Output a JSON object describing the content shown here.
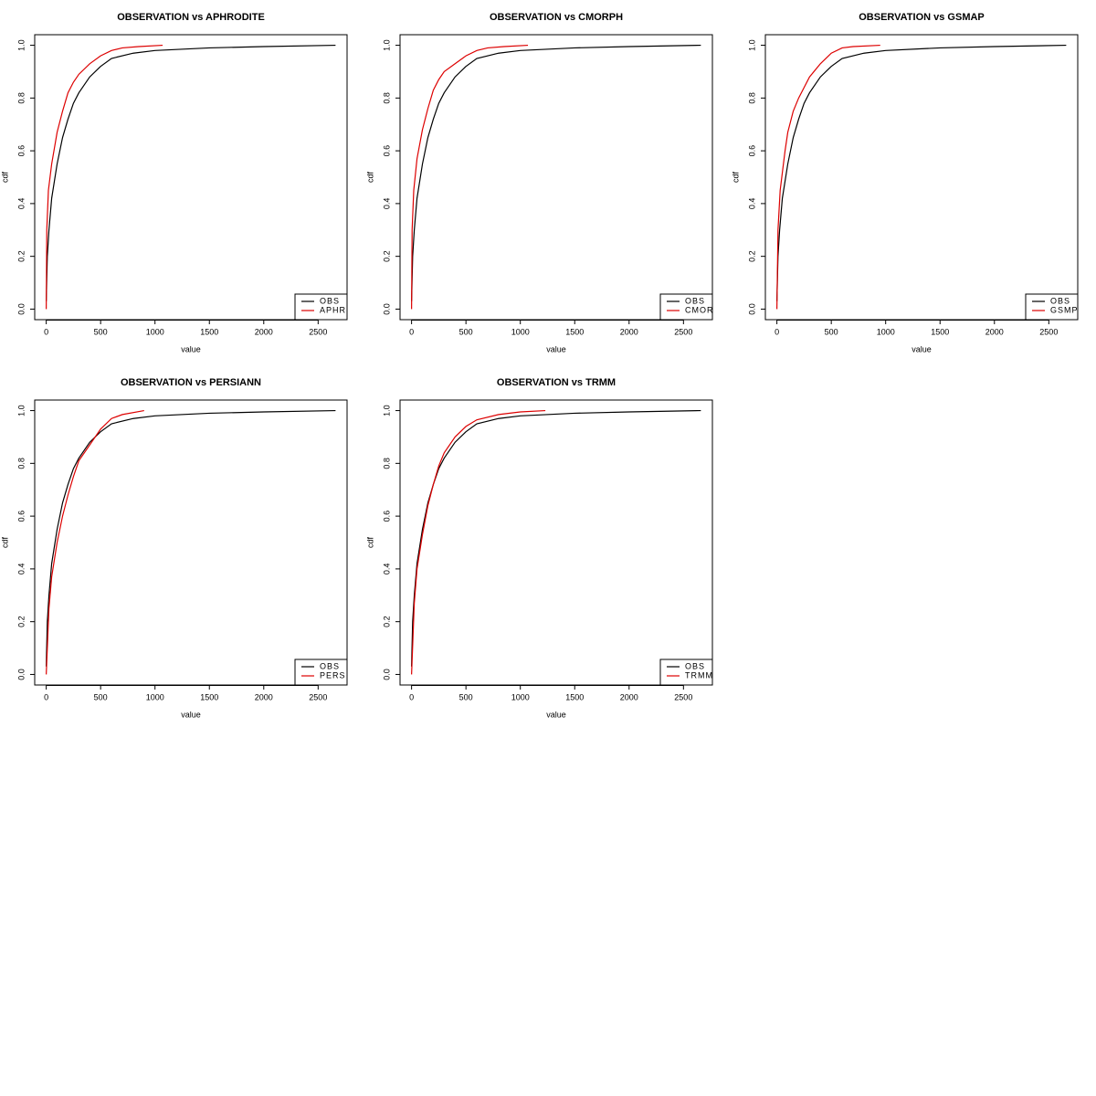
{
  "chart_data": [
    {
      "type": "line",
      "title": "OBSERVATION vs APHRODITE",
      "x_label": "value",
      "y_label": "cdf",
      "xlim": [
        -106,
        2766
      ],
      "ylim": [
        -0.04,
        1.04
      ],
      "xticks": [
        0,
        500,
        1000,
        1500,
        2000,
        2500
      ],
      "yticks": [
        {
          "value": 0,
          "label": "0.0"
        },
        0.2,
        0.4,
        0.6,
        0.8,
        {
          "value": 1,
          "label": "1.0"
        }
      ],
      "legend": "bottomright",
      "series": [
        {
          "name": "OBS",
          "color": "#000000",
          "x": [
            0,
            10,
            25,
            50,
            100,
            150,
            200,
            250,
            300,
            400,
            500,
            600,
            800,
            1000,
            1500,
            2000,
            2660
          ],
          "values": [
            0.03,
            0.2,
            0.3,
            0.42,
            0.55,
            0.65,
            0.72,
            0.78,
            0.82,
            0.88,
            0.92,
            0.95,
            0.97,
            0.98,
            0.99,
            0.995,
            1.0
          ]
        },
        {
          "name": "APHR",
          "color": "#dd0000",
          "x": [
            0,
            5,
            20,
            50,
            100,
            150,
            200,
            250,
            300,
            400,
            500,
            600,
            700,
            850,
            1070
          ],
          "values": [
            0.0,
            0.3,
            0.45,
            0.55,
            0.67,
            0.75,
            0.82,
            0.86,
            0.89,
            0.93,
            0.96,
            0.98,
            0.99,
            0.995,
            1.0
          ]
        }
      ]
    },
    {
      "type": "line",
      "title": "OBSERVATION vs CMORPH",
      "x_label": "value",
      "y_label": "cdf",
      "xlim": [
        -106,
        2766
      ],
      "ylim": [
        -0.04,
        1.04
      ],
      "xticks": [
        0,
        500,
        1000,
        1500,
        2000,
        2500
      ],
      "yticks": [
        {
          "value": 0,
          "label": "0.0"
        },
        0.2,
        0.4,
        0.6,
        0.8,
        {
          "value": 1,
          "label": "1.0"
        }
      ],
      "legend": "bottomright",
      "series": [
        {
          "name": "OBS",
          "color": "#000000",
          "x": [
            0,
            10,
            25,
            50,
            100,
            150,
            200,
            250,
            300,
            400,
            500,
            600,
            800,
            1000,
            1500,
            2000,
            2660
          ],
          "values": [
            0.03,
            0.2,
            0.3,
            0.42,
            0.55,
            0.65,
            0.72,
            0.78,
            0.82,
            0.88,
            0.92,
            0.95,
            0.97,
            0.98,
            0.99,
            0.995,
            1.0
          ]
        },
        {
          "name": "CMOR",
          "color": "#dd0000",
          "x": [
            0,
            5,
            20,
            50,
            100,
            150,
            200,
            250,
            300,
            400,
            500,
            600,
            700,
            850,
            1070
          ],
          "values": [
            0.0,
            0.3,
            0.45,
            0.57,
            0.68,
            0.76,
            0.83,
            0.87,
            0.9,
            0.93,
            0.96,
            0.98,
            0.99,
            0.995,
            1.0
          ]
        }
      ]
    },
    {
      "type": "line",
      "title": "OBSERVATION vs GSMAP",
      "x_label": "value",
      "y_label": "cdf",
      "xlim": [
        -106,
        2766
      ],
      "ylim": [
        -0.04,
        1.04
      ],
      "xticks": [
        0,
        500,
        1000,
        1500,
        2000,
        2500
      ],
      "yticks": [
        {
          "value": 0,
          "label": "0.0"
        },
        0.2,
        0.4,
        0.6,
        0.8,
        {
          "value": 1,
          "label": "1.0"
        }
      ],
      "legend": "bottomright",
      "series": [
        {
          "name": "OBS",
          "color": "#000000",
          "x": [
            0,
            10,
            25,
            50,
            100,
            150,
            200,
            250,
            300,
            400,
            500,
            600,
            800,
            1000,
            1500,
            2000,
            2660
          ],
          "values": [
            0.03,
            0.2,
            0.3,
            0.42,
            0.55,
            0.65,
            0.72,
            0.78,
            0.82,
            0.88,
            0.92,
            0.95,
            0.97,
            0.98,
            0.99,
            0.995,
            1.0
          ]
        },
        {
          "name": "GSMP",
          "color": "#dd0000",
          "x": [
            0,
            10,
            30,
            75,
            100,
            150,
            200,
            300,
            400,
            500,
            600,
            700,
            950
          ],
          "values": [
            0.0,
            0.3,
            0.45,
            0.6,
            0.67,
            0.75,
            0.8,
            0.88,
            0.93,
            0.97,
            0.99,
            0.995,
            1.0
          ]
        }
      ]
    },
    {
      "type": "line",
      "title": "OBSERVATION vs PERSIANN",
      "x_label": "value",
      "y_label": "cdf",
      "xlim": [
        -106,
        2766
      ],
      "ylim": [
        -0.04,
        1.04
      ],
      "xticks": [
        0,
        500,
        1000,
        1500,
        2000,
        2500
      ],
      "yticks": [
        {
          "value": 0,
          "label": "0.0"
        },
        0.2,
        0.4,
        0.6,
        0.8,
        {
          "value": 1,
          "label": "1.0"
        }
      ],
      "legend": "bottomright",
      "series": [
        {
          "name": "OBS",
          "color": "#000000",
          "x": [
            0,
            10,
            25,
            50,
            100,
            150,
            200,
            250,
            300,
            400,
            500,
            600,
            800,
            1000,
            1500,
            2000,
            2660
          ],
          "values": [
            0.03,
            0.2,
            0.3,
            0.42,
            0.55,
            0.65,
            0.72,
            0.78,
            0.82,
            0.88,
            0.92,
            0.95,
            0.97,
            0.98,
            0.99,
            0.995,
            1.0
          ]
        },
        {
          "name": "PERS",
          "color": "#dd0000",
          "x": [
            0,
            25,
            50,
            100,
            150,
            200,
            250,
            300,
            400,
            500,
            600,
            700,
            900
          ],
          "values": [
            0.0,
            0.25,
            0.37,
            0.5,
            0.6,
            0.68,
            0.75,
            0.81,
            0.87,
            0.93,
            0.97,
            0.985,
            1.0
          ]
        }
      ]
    },
    {
      "type": "line",
      "title": "OBSERVATION vs TRMM",
      "x_label": "value",
      "y_label": "cdf",
      "xlim": [
        -106,
        2766
      ],
      "ylim": [
        -0.04,
        1.04
      ],
      "xticks": [
        0,
        500,
        1000,
        1500,
        2000,
        2500
      ],
      "yticks": [
        {
          "value": 0,
          "label": "0.0"
        },
        0.2,
        0.4,
        0.6,
        0.8,
        {
          "value": 1,
          "label": "1.0"
        }
      ],
      "legend": "bottomright",
      "series": [
        {
          "name": "OBS",
          "color": "#000000",
          "x": [
            0,
            10,
            25,
            50,
            100,
            150,
            200,
            250,
            300,
            400,
            500,
            600,
            800,
            1000,
            1500,
            2000,
            2660
          ],
          "values": [
            0.03,
            0.2,
            0.3,
            0.42,
            0.55,
            0.65,
            0.72,
            0.78,
            0.82,
            0.88,
            0.92,
            0.95,
            0.97,
            0.98,
            0.99,
            0.995,
            1.0
          ]
        },
        {
          "name": "TRMM",
          "color": "#dd0000",
          "x": [
            0,
            25,
            50,
            100,
            150,
            200,
            250,
            300,
            400,
            500,
            600,
            800,
            1000,
            1230
          ],
          "values": [
            0.0,
            0.27,
            0.4,
            0.53,
            0.64,
            0.72,
            0.79,
            0.84,
            0.9,
            0.94,
            0.965,
            0.985,
            0.995,
            1.0
          ]
        }
      ]
    }
  ]
}
